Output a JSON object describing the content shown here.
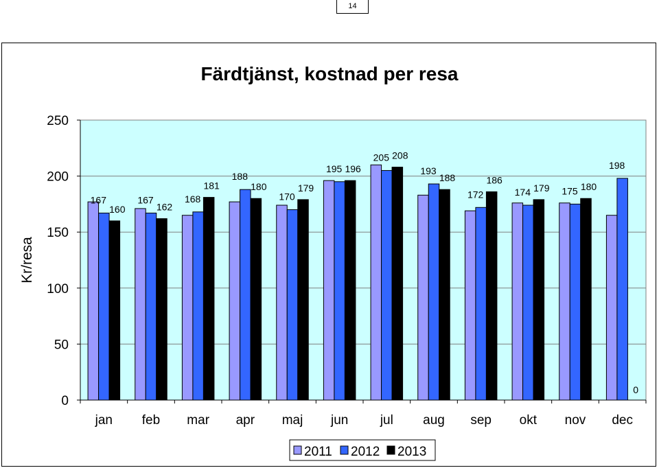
{
  "page": {
    "number": "14"
  },
  "chart_data": {
    "type": "bar",
    "title": "Färdtjänst, kostnad per resa",
    "xlabel": "",
    "ylabel": "Kr/resa",
    "ylim": [
      0,
      250
    ],
    "yticks": [
      0,
      50,
      100,
      150,
      200,
      250
    ],
    "grid": true,
    "legend_position": "bottom",
    "categories": [
      "jan",
      "feb",
      "mar",
      "apr",
      "maj",
      "jun",
      "jul",
      "aug",
      "sep",
      "okt",
      "nov",
      "dec"
    ],
    "series": [
      {
        "name": "2011",
        "color": "#9999ff",
        "values": [
          177,
          171,
          165,
          177,
          174,
          196,
          210,
          183,
          169,
          176,
          176,
          165
        ],
        "labels": [
          "",
          "",
          "",
          "",
          "",
          "",
          "",
          "",
          "",
          "",
          "",
          ""
        ]
      },
      {
        "name": "2012",
        "color": "#3366ff",
        "values": [
          167,
          167,
          168,
          188,
          170,
          195,
          205,
          193,
          172,
          174,
          175,
          198
        ],
        "labels": [
          "167",
          "167",
          "168",
          "188",
          "170",
          "195",
          "205",
          "193",
          "172",
          "174",
          "175",
          "198"
        ]
      },
      {
        "name": "2013",
        "color": "#000000",
        "values": [
          160,
          162,
          181,
          180,
          179,
          196,
          208,
          188,
          186,
          179,
          180,
          0
        ],
        "labels": [
          "160",
          "162",
          "181",
          "180",
          "179",
          "196",
          "208",
          "188",
          "186",
          "179",
          "180",
          "0"
        ]
      }
    ]
  }
}
